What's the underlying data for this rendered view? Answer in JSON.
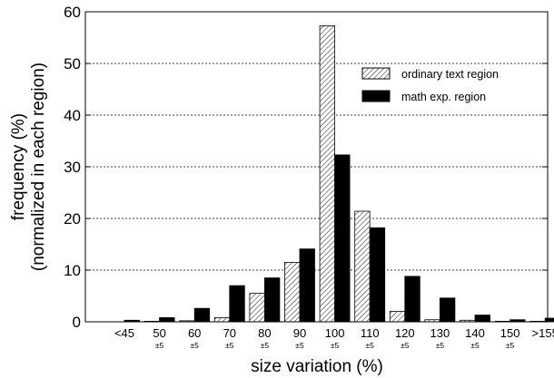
{
  "chart_data": {
    "type": "bar",
    "title": "",
    "xlabel": "size variation (%)",
    "ylabel_line1": "frequency (%)",
    "ylabel_line2": "(normalized in each region)",
    "ylim": [
      0,
      60
    ],
    "yticks": [
      0,
      10,
      20,
      30,
      40,
      50,
      60
    ],
    "grid": "horizontal dashed",
    "legend_position": "top-right",
    "categories": [
      {
        "label": "<45",
        "sub": ""
      },
      {
        "label": "50",
        "sub": "±5"
      },
      {
        "label": "60",
        "sub": "±5"
      },
      {
        "label": "70",
        "sub": "±5"
      },
      {
        "label": "80",
        "sub": "±5"
      },
      {
        "label": "90",
        "sub": "±5"
      },
      {
        "label": "100",
        "sub": "±5"
      },
      {
        "label": "110",
        "sub": "±5"
      },
      {
        "label": "120",
        "sub": "±5"
      },
      {
        "label": "130",
        "sub": "±5"
      },
      {
        "label": "140",
        "sub": "±5"
      },
      {
        "label": "150",
        "sub": "±5"
      },
      {
        "label": ">155",
        "sub": ""
      }
    ],
    "series": [
      {
        "name": "ordinary text region",
        "fill": "hatched",
        "values": [
          0.0,
          0.1,
          0.2,
          0.8,
          5.5,
          11.5,
          57.3,
          21.4,
          2.0,
          0.4,
          0.3,
          0.1,
          0.1
        ]
      },
      {
        "name": "math exp. region",
        "fill": "#000000",
        "values": [
          0.3,
          0.8,
          2.6,
          7.0,
          8.5,
          14.1,
          32.3,
          18.2,
          8.8,
          4.6,
          1.3,
          0.4,
          0.7
        ]
      }
    ]
  }
}
